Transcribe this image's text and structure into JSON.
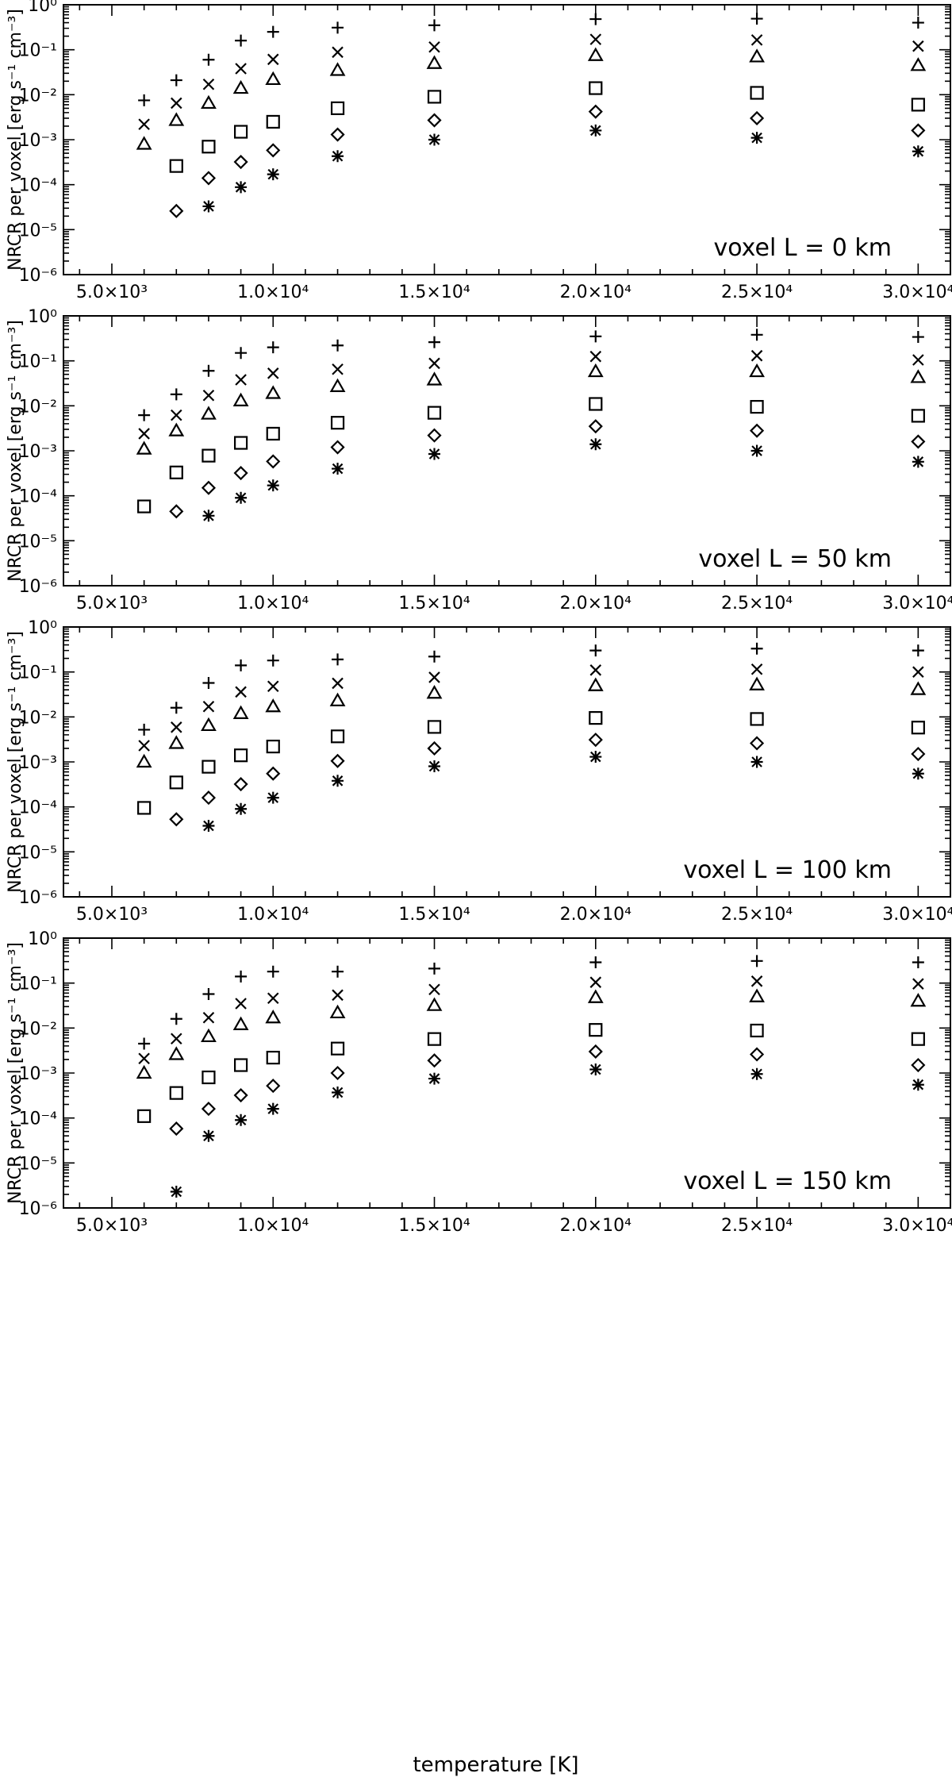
{
  "figure": {
    "xlabel": "temperature [K]",
    "xtick_labels": [
      "5.0×10³",
      "1.0×10⁴",
      "1.5×10⁴",
      "2.0×10⁴",
      "2.5×10⁴",
      "3.0×10⁴"
    ],
    "xtick_values": [
      5000,
      10000,
      15000,
      20000,
      25000,
      30000
    ],
    "ytick_labels": [
      "10⁰",
      "10⁻¹",
      "10⁻²",
      "10⁻³",
      "10⁻⁴",
      "10⁻⁵",
      "10⁻⁶"
    ],
    "ytick_exponents": [
      0,
      -1,
      -2,
      -3,
      -4,
      -5,
      -6
    ]
  },
  "chart_data": [
    {
      "type": "scatter",
      "title": "",
      "annotation": "voxel L = 0 km",
      "xlabel": "",
      "ylabel": "NRCR per voxel [erg s⁻¹ cm⁻³]",
      "xlim": [
        3500,
        31000
      ],
      "ylim": [
        1e-06,
        1
      ],
      "yscale": "log",
      "x": [
        6000,
        7000,
        8000,
        9000,
        10000,
        12000,
        15000,
        20000,
        25000,
        30000
      ],
      "series": [
        {
          "marker": "plus",
          "values": [
            0.0075,
            0.021,
            0.06,
            0.16,
            0.25,
            0.31,
            0.35,
            0.48,
            0.49,
            0.4
          ]
        },
        {
          "marker": "cross",
          "values": [
            0.0022,
            0.0065,
            0.017,
            0.038,
            0.061,
            0.088,
            0.115,
            0.17,
            0.165,
            0.12
          ]
        },
        {
          "marker": "triangle",
          "values": [
            0.0008,
            0.0027,
            0.0065,
            0.014,
            0.022,
            0.035,
            0.05,
            0.075,
            0.07,
            0.045
          ]
        },
        {
          "marker": "square",
          "values": [
            null,
            0.00026,
            0.0007,
            0.0015,
            0.0025,
            0.005,
            0.009,
            0.014,
            0.011,
            0.006
          ]
        },
        {
          "marker": "diamond",
          "values": [
            null,
            2.6e-05,
            0.00014,
            0.00032,
            0.00058,
            0.0013,
            0.0027,
            0.0042,
            0.003,
            0.0016
          ]
        },
        {
          "marker": "asterisk",
          "values": [
            null,
            null,
            3.3e-05,
            8.8e-05,
            0.00017,
            0.00043,
            0.001,
            0.0016,
            0.0011,
            0.00055
          ]
        }
      ]
    },
    {
      "type": "scatter",
      "title": "",
      "annotation": "voxel L = 50 km",
      "xlabel": "",
      "ylabel": "NRCR per voxel [erg s⁻¹ cm⁻³]",
      "xlim": [
        3500,
        31000
      ],
      "ylim": [
        1e-06,
        1
      ],
      "yscale": "log",
      "x": [
        6000,
        7000,
        8000,
        9000,
        10000,
        12000,
        15000,
        20000,
        25000,
        30000
      ],
      "series": [
        {
          "marker": "plus",
          "values": [
            0.0062,
            0.018,
            0.06,
            0.15,
            0.2,
            0.22,
            0.26,
            0.35,
            0.38,
            0.34
          ]
        },
        {
          "marker": "cross",
          "values": [
            0.0024,
            0.0062,
            0.017,
            0.038,
            0.053,
            0.065,
            0.088,
            0.125,
            0.13,
            0.105
          ]
        },
        {
          "marker": "triangle",
          "values": [
            0.0011,
            0.0028,
            0.0066,
            0.013,
            0.019,
            0.027,
            0.038,
            0.058,
            0.058,
            0.043
          ]
        },
        {
          "marker": "square",
          "values": [
            5.8e-05,
            0.00033,
            0.00078,
            0.0015,
            0.0024,
            0.0042,
            0.007,
            0.011,
            0.0095,
            0.006
          ]
        },
        {
          "marker": "diamond",
          "values": [
            null,
            4.5e-05,
            0.00015,
            0.00032,
            0.00058,
            0.0012,
            0.0022,
            0.0035,
            0.0028,
            0.0016
          ]
        },
        {
          "marker": "asterisk",
          "values": [
            null,
            null,
            3.6e-05,
            9e-05,
            0.00017,
            0.0004,
            0.00085,
            0.0014,
            0.001,
            0.00057
          ]
        }
      ]
    },
    {
      "type": "scatter",
      "title": "",
      "annotation": "voxel L = 100 km",
      "xlabel": "",
      "ylabel": "NRCR per voxel [erg s⁻¹ cm⁻³]",
      "xlim": [
        3500,
        31000
      ],
      "ylim": [
        1e-06,
        1
      ],
      "yscale": "log",
      "x": [
        6000,
        7000,
        8000,
        9000,
        10000,
        12000,
        15000,
        20000,
        25000,
        30000
      ],
      "series": [
        {
          "marker": "plus",
          "values": [
            0.0052,
            0.016,
            0.057,
            0.14,
            0.18,
            0.19,
            0.22,
            0.3,
            0.33,
            0.3
          ]
        },
        {
          "marker": "cross",
          "values": [
            0.0023,
            0.0059,
            0.017,
            0.036,
            0.048,
            0.056,
            0.076,
            0.11,
            0.115,
            0.1
          ]
        },
        {
          "marker": "triangle",
          "values": [
            0.001,
            0.0026,
            0.0065,
            0.012,
            0.017,
            0.023,
            0.034,
            0.05,
            0.052,
            0.041
          ]
        },
        {
          "marker": "square",
          "values": [
            9.5e-05,
            0.00035,
            0.00078,
            0.0014,
            0.0022,
            0.0037,
            0.006,
            0.0095,
            0.009,
            0.0058
          ]
        },
        {
          "marker": "diamond",
          "values": [
            null,
            5.3e-05,
            0.00016,
            0.00032,
            0.00055,
            0.00105,
            0.002,
            0.0031,
            0.0026,
            0.0015
          ]
        },
        {
          "marker": "asterisk",
          "values": [
            null,
            null,
            3.8e-05,
            9e-05,
            0.00016,
            0.00038,
            0.0008,
            0.0013,
            0.001,
            0.00055
          ]
        }
      ]
    },
    {
      "type": "scatter",
      "title": "",
      "annotation": "voxel L = 150 km",
      "xlabel": "temperature [K]",
      "ylabel": "NRCR per voxel [erg s⁻¹ cm⁻³]",
      "xlim": [
        3500,
        31000
      ],
      "ylim": [
        1e-06,
        1
      ],
      "yscale": "log",
      "x": [
        6000,
        7000,
        8000,
        9000,
        10000,
        12000,
        15000,
        20000,
        25000,
        30000
      ],
      "series": [
        {
          "marker": "plus",
          "values": [
            0.0045,
            0.016,
            0.057,
            0.14,
            0.18,
            0.18,
            0.21,
            0.29,
            0.31,
            0.29
          ]
        },
        {
          "marker": "cross",
          "values": [
            0.0021,
            0.0058,
            0.017,
            0.035,
            0.046,
            0.054,
            0.072,
            0.104,
            0.11,
            0.096
          ]
        },
        {
          "marker": "triangle",
          "values": [
            0.001,
            0.0026,
            0.0065,
            0.012,
            0.017,
            0.022,
            0.032,
            0.048,
            0.05,
            0.04
          ]
        },
        {
          "marker": "square",
          "values": [
            0.00011,
            0.00036,
            0.0008,
            0.0015,
            0.0022,
            0.0035,
            0.0057,
            0.0091,
            0.0088,
            0.0057
          ]
        },
        {
          "marker": "diamond",
          "values": [
            null,
            5.8e-05,
            0.00016,
            0.00032,
            0.00052,
            0.001,
            0.0019,
            0.003,
            0.0026,
            0.0015
          ]
        },
        {
          "marker": "asterisk",
          "values": [
            null,
            2.3e-06,
            4e-05,
            9e-05,
            0.00016,
            0.00037,
            0.00075,
            0.0012,
            0.00095,
            0.00055
          ]
        }
      ]
    }
  ]
}
